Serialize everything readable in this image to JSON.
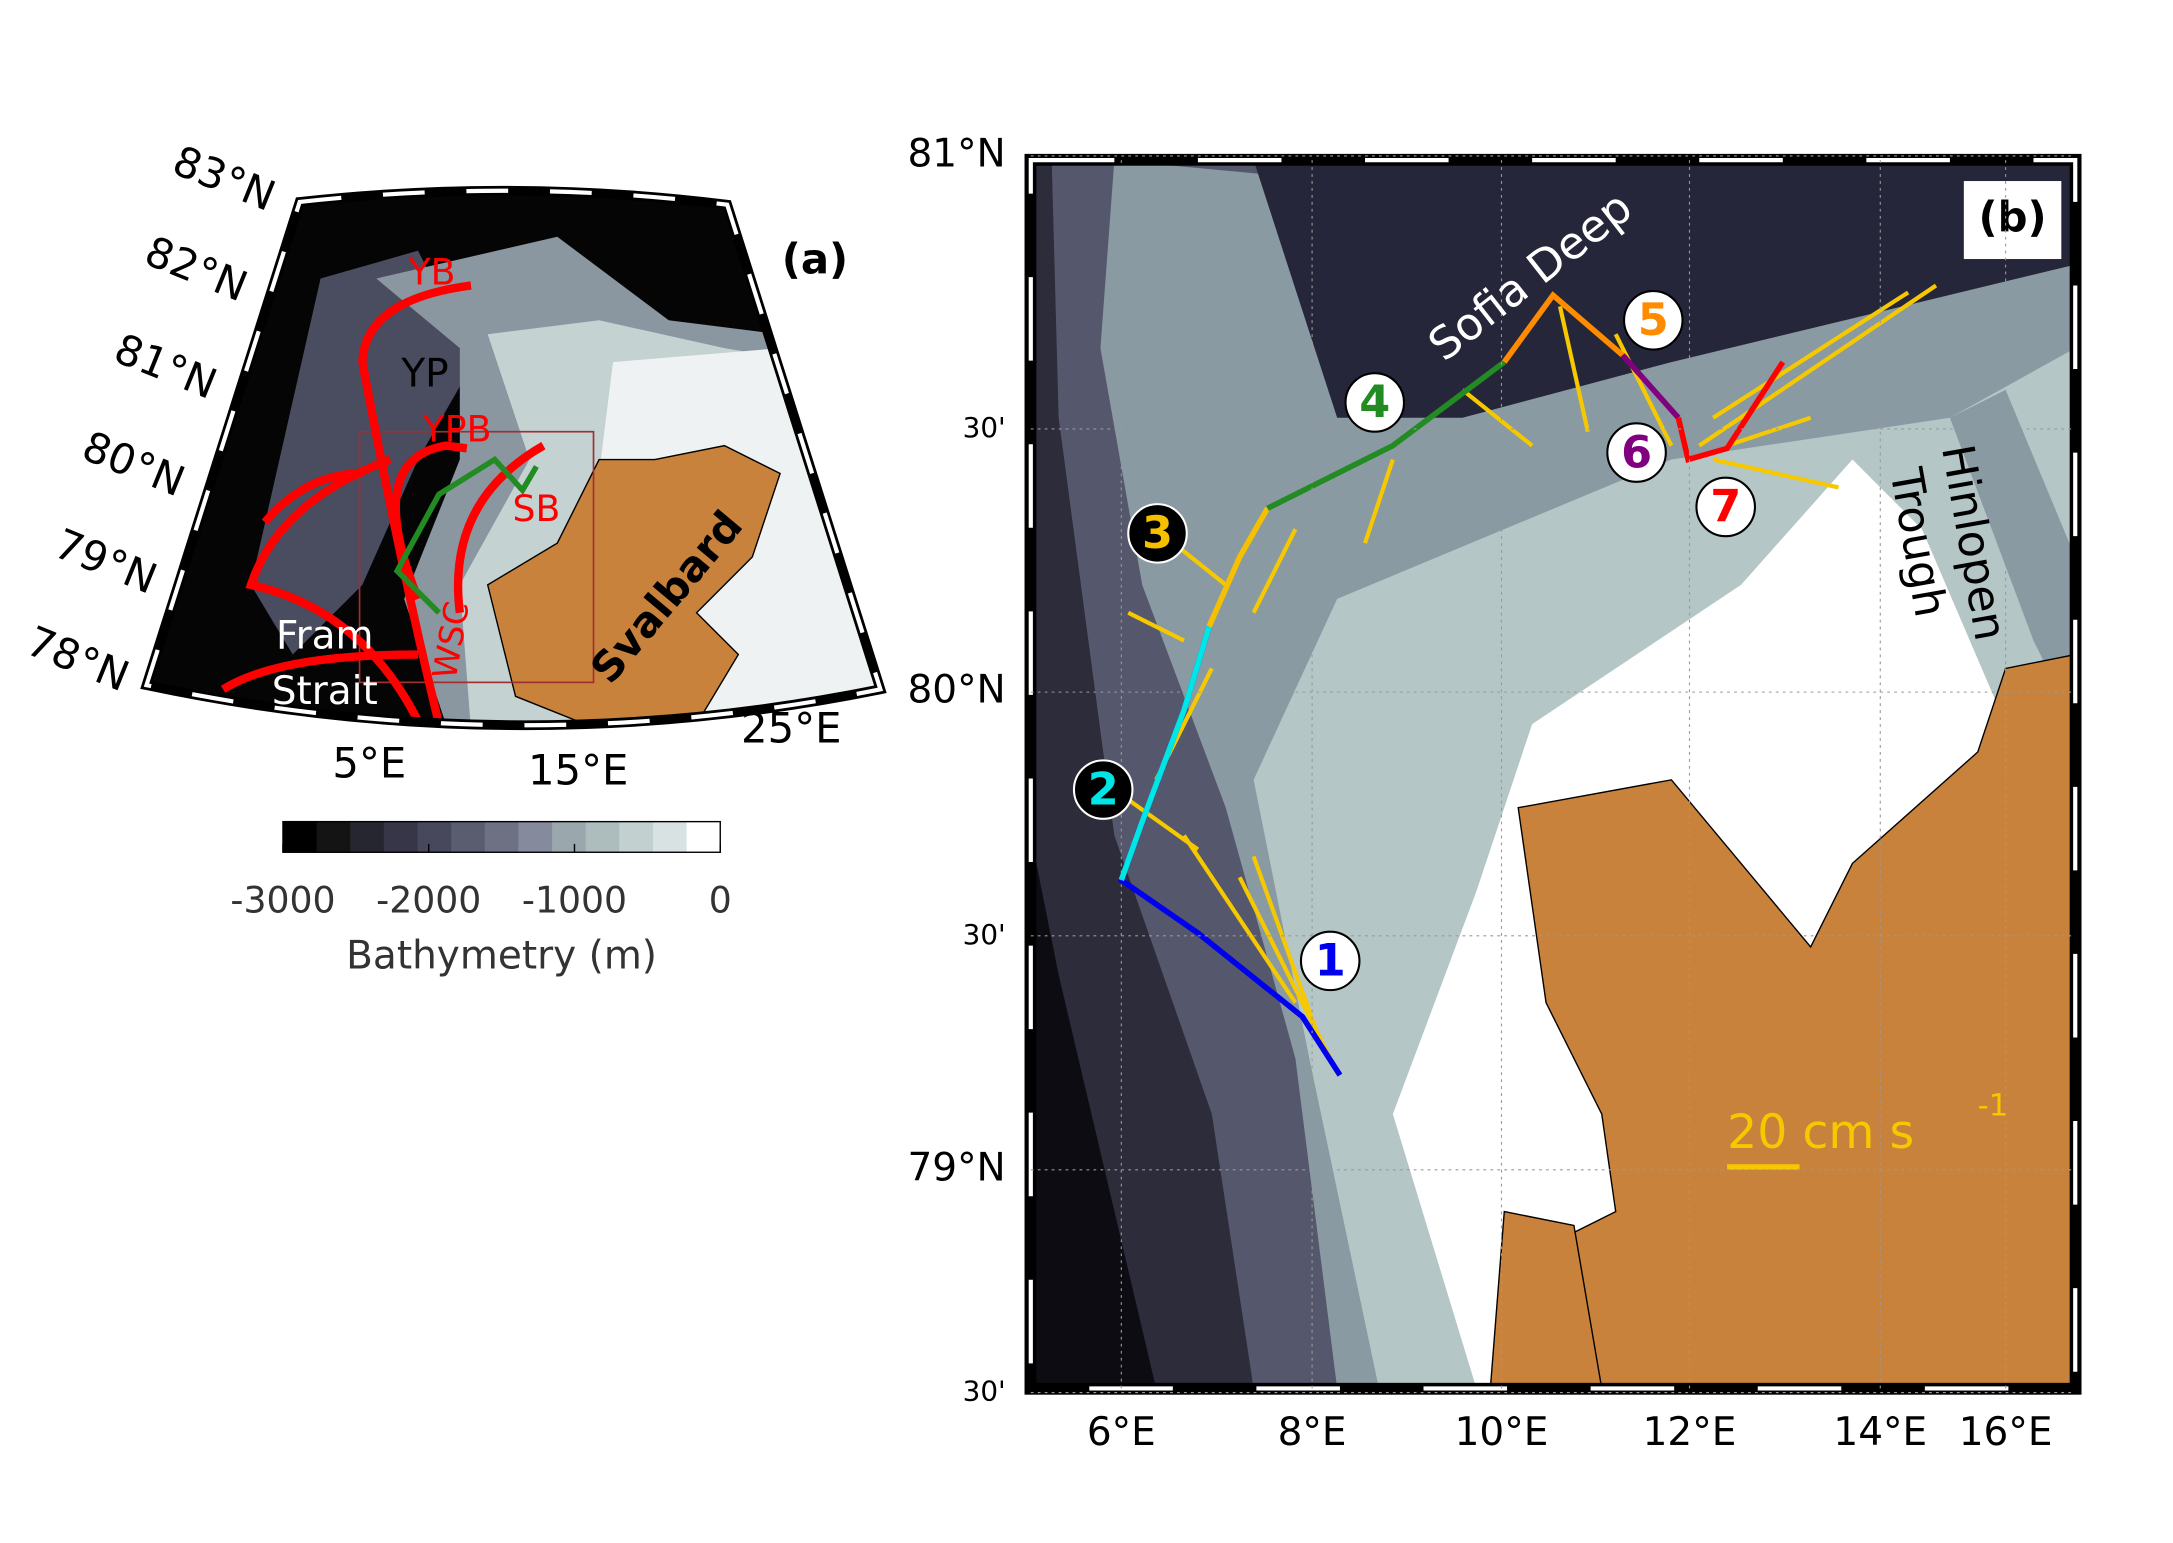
{
  "panel_a": {
    "label": "(a)",
    "lat_labels": [
      "83°N",
      "82°N",
      "81°N",
      "80°N",
      "79°N",
      "78°N"
    ],
    "lon_labels": [
      "5°E",
      "15°E",
      "25°E"
    ],
    "regions": [
      "YB",
      "YP",
      "YPB",
      "SB",
      "WSC"
    ],
    "fram": [
      "Fram",
      "Strait"
    ],
    "svalbard": "Svalbard"
  },
  "colorbar": {
    "lim": [
      -3000,
      0
    ],
    "ticks": [
      -3000,
      -2000,
      -1000,
      0
    ],
    "colors": [
      "#000000",
      "#141414",
      "#262630",
      "#363648",
      "#47485c",
      "#5a5c70",
      "#6e7084",
      "#858a9c",
      "#9aa8ae",
      "#adbcbc",
      "#c2d0d0",
      "#d8e2e2",
      "#ffffff"
    ],
    "label": "Bathymetry (m)"
  },
  "panel_b": {
    "label": "(b)",
    "lat_labels": [
      "81°N",
      "30'",
      "80°N",
      "30'",
      "79°N",
      "30'"
    ],
    "lon_labels": [
      "6°E",
      "8°E",
      "10°E",
      "12°E",
      "14°E",
      "16°E"
    ],
    "sofia": "Sofia Deep",
    "hinlopen": [
      "Hinlopen",
      "Trough"
    ],
    "stations": [
      {
        "label": "1",
        "color": "#0000ee",
        "bg": "#ffffff"
      },
      {
        "label": "2",
        "color": "#00e5e5",
        "bg": "#000000"
      },
      {
        "label": "3",
        "color": "#f5c000",
        "bg": "#000000"
      },
      {
        "label": "4",
        "color": "#228b22",
        "bg": "#ffffff"
      },
      {
        "label": "5",
        "color": "#ff8c00",
        "bg": "#ffffff"
      },
      {
        "label": "6",
        "color": "#800080",
        "bg": "#ffffff"
      },
      {
        "label": "7",
        "color": "#ff0000",
        "bg": "#ffffff"
      }
    ],
    "scale": {
      "text": "20 cm s",
      "exp": "-1"
    }
  }
}
